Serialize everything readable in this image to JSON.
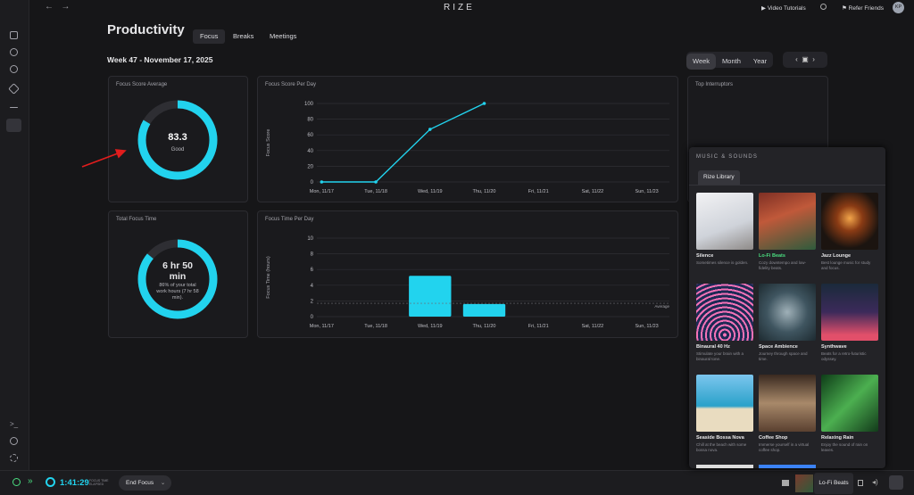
{
  "top_bar": {
    "app_name": "RIZE",
    "video_tutorials": "Video Tutorials",
    "refer_friends": "Refer Friends",
    "avatar": "KP"
  },
  "page": {
    "title": "Productivity",
    "tabs": [
      "Focus",
      "Breaks",
      "Meetings"
    ],
    "week": "Week 47 - November 17, 2025",
    "ranges": [
      "Week",
      "Month",
      "Year"
    ]
  },
  "focus_score_average": {
    "title": "Focus Score Average",
    "score": 83.3,
    "rating": "Good"
  },
  "focus_score_per_day": {
    "type": "line",
    "title": "Focus Score Per Day",
    "y_label": "Focus Score",
    "categories": [
      "Mon, 11/17",
      "Tue, 11/18",
      "Wed, 11/19",
      "Thu, 11/20",
      "Fri, 11/21",
      "Sat, 11/22",
      "Sun, 11/23"
    ],
    "values": [
      0,
      0,
      67,
      100,
      null,
      null,
      null
    ],
    "color": "#22d3ee",
    "ylim": [
      0,
      100
    ],
    "yticks": [
      0,
      20,
      40,
      60,
      80,
      100
    ],
    "grid": true
  },
  "top_interruptors": {
    "title": "Top Interruptors"
  },
  "total_focus_time": {
    "title": "Total Focus Time",
    "total": "6 hr 50 min",
    "percent_of_work_hours": 86,
    "detail": "86% of your total work hours (7 hr 58 min)."
  },
  "focus_time_per_day": {
    "type": "bar",
    "title": "Focus Time Per Day",
    "y_label": "Focus Time (hours)",
    "categories": [
      "Mon, 11/17",
      "Tue, 11/18",
      "Wed, 11/19",
      "Thu, 11/20",
      "Fri, 11/21",
      "Sat, 11/22",
      "Sun, 11/23"
    ],
    "values": [
      0,
      0,
      5.2,
      1.6,
      0,
      0,
      0
    ],
    "color": "#22d3ee",
    "ylim": [
      0,
      10
    ],
    "yticks": [
      0,
      2,
      4,
      6,
      8,
      10
    ],
    "grid": true,
    "average": 1.7,
    "average_label": "Average"
  },
  "music": {
    "title": "MUSIC & SOUNDS",
    "tab": "Rize Library",
    "items": [
      {
        "title": "Silence",
        "description": "Sometimes silence is golden."
      },
      {
        "title": "Lo-Fi Beats",
        "description": "Cozy downtempo and low-fidelity beats."
      },
      {
        "title": "Jazz Lounge",
        "description": "Best lounge music for study and focus."
      },
      {
        "title": "Binaural 40 Hz",
        "description": "Stimulate your brain with a binaural tone."
      },
      {
        "title": "Space Ambience",
        "description": "Journey through space and time."
      },
      {
        "title": "Synthwave",
        "description": "Beats for a retro-futuristic odyssey."
      },
      {
        "title": "Seaside Bossa Nova",
        "description": "Chill at the beach with some bossa nova."
      },
      {
        "title": "Coffee Shop",
        "description": "Immerse yourself in a virtual coffee shop."
      },
      {
        "title": "Relaxing Rain",
        "description": "Enjoy the sound of rain on leaves."
      }
    ]
  },
  "bottom_bar": {
    "timer": "1:41:29",
    "timer_caption": "FOCUS TIME ELAPSED",
    "end_focus": "End Focus",
    "now_playing": "Lo-Fi Beats"
  }
}
